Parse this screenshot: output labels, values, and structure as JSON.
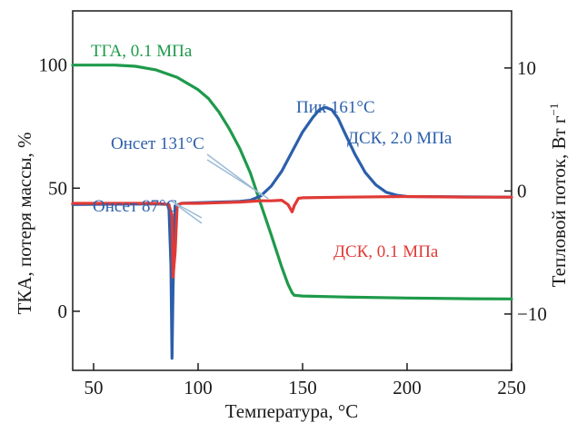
{
  "chart_data": {
    "type": "line",
    "title": "",
    "xlabel": "Температура, °C",
    "ylabel_left": "ТКА, потеря массы, %",
    "ylabel_right_main": "Тепловой поток, Вт г",
    "ylabel_right_sup": "−1",
    "xlim": [
      40,
      250
    ],
    "ylim_left": [
      -24,
      122
    ],
    "ylim_right": [
      -14.58,
      14.64
    ],
    "x_ticks": [
      50,
      100,
      150,
      200,
      250
    ],
    "y_ticks_left": [
      0,
      50,
      100
    ],
    "y_ticks_right": [
      -10,
      0,
      10
    ],
    "y_tick_labels_right": [
      "−10",
      "0",
      "10"
    ],
    "grid": false,
    "series": [
      {
        "name": "ТГА, 0.1 МПа",
        "axis": "left",
        "color": "#1e9a4a",
        "x": [
          40,
          60,
          70,
          80,
          90,
          100,
          105,
          110,
          115,
          120,
          125,
          130,
          135,
          140,
          143,
          145,
          146,
          150,
          170,
          200,
          230,
          250
        ],
        "y": [
          100,
          100,
          99.5,
          98,
          95,
          90,
          86.4,
          80.9,
          74,
          66,
          56.2,
          43.5,
          31,
          18,
          11,
          7.5,
          6.5,
          6.2,
          5.8,
          5.4,
          5.1,
          5.0
        ]
      },
      {
        "name": "ДСК, 2.0 МПа",
        "axis": "right",
        "color": "#2b5fab",
        "x": [
          40,
          80,
          86,
          87,
          87.5,
          88,
          89,
          92,
          100,
          110,
          120,
          125,
          130,
          135,
          140,
          145,
          150,
          155,
          158,
          161,
          164,
          167,
          170,
          175,
          180,
          185,
          190,
          195,
          200,
          250
        ],
        "y": [
          -1.1,
          -1.05,
          -1.1,
          -6,
          -13.6,
          -8,
          -1.2,
          -1.0,
          -0.95,
          -0.9,
          -0.85,
          -0.75,
          -0.4,
          0.4,
          1.6,
          3.2,
          4.8,
          6.0,
          6.6,
          6.8,
          6.6,
          5.9,
          4.8,
          3.0,
          1.5,
          0.5,
          -0.1,
          -0.35,
          -0.45,
          -0.5
        ]
      },
      {
        "name": "ДСК, 0.1 МПа",
        "axis": "right",
        "color": "#e03a36",
        "x": [
          40,
          80,
          86,
          87.5,
          88,
          89,
          90,
          92,
          100,
          110,
          120,
          130,
          135,
          140,
          143,
          145,
          146,
          148,
          150,
          170,
          200,
          230,
          250
        ],
        "y": [
          -1.0,
          -1.0,
          -1.1,
          -2,
          -7,
          -5,
          -1.2,
          -1.0,
          -1.0,
          -0.95,
          -0.9,
          -0.8,
          -0.8,
          -0.75,
          -1.1,
          -1.7,
          -1.2,
          -0.6,
          -0.55,
          -0.5,
          -0.45,
          -0.5,
          -0.5
        ]
      }
    ],
    "annotations": {
      "tga_label": "ТГА, 0.1 МПа",
      "dsc20_label": "ДСК, 2.0 МПа",
      "dsc01_label": "ДСК, 0.1 МПа",
      "peak_label": "Пик 161°C",
      "onset131_label": "Онсет 131°C",
      "onset87_label": "Онсет 87°C"
    },
    "annotation_colors": {
      "tga": "#1e9a4a",
      "dsc20": "#2b5fab",
      "dsc01": "#e03a36",
      "onset_line": "#9bbad6"
    }
  }
}
